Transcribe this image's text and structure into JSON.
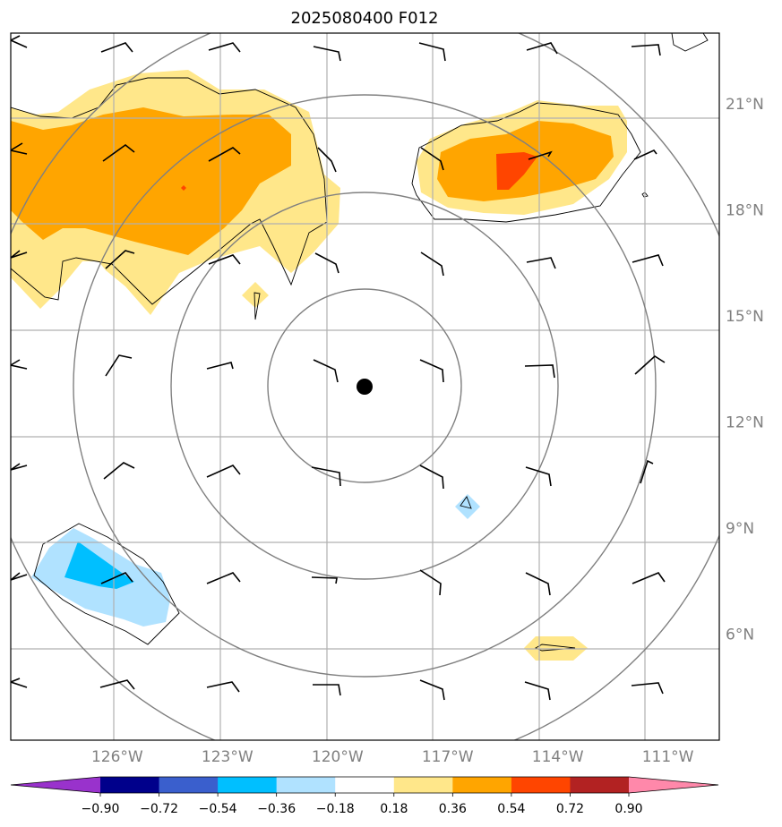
{
  "title": "2025080400 F012",
  "map": {
    "lon_range": [
      -128.9,
      -109.6
    ],
    "lat_range": [
      3.0,
      23.0
    ],
    "center": {
      "lon": "-118.9",
      "lat": "13.4"
    },
    "lon_labels": [
      "126°W",
      "123°W",
      "120°W",
      "117°W",
      "114°W",
      "111°W"
    ],
    "lon_values": [
      -126,
      -123,
      -120,
      -117,
      -114,
      -111
    ],
    "lat_labels": [
      "21°N",
      "18°N",
      "15°N",
      "12°N",
      "9°N",
      "6°N"
    ],
    "lat_values": [
      21,
      18,
      15,
      12,
      9,
      6
    ],
    "range_rings_deg": [
      2.7,
      5.4,
      8.1,
      10.8
    ]
  },
  "colorbar": {
    "tick_labels": [
      "−0.90",
      "−0.72",
      "−0.54",
      "−0.36",
      "−0.18",
      "0.18",
      "0.36",
      "0.54",
      "0.72",
      "0.90"
    ],
    "under_color": "#9932cc",
    "over_color": "#ff88aa",
    "colors": [
      "#9932cc",
      "#00008b",
      "#3a5fcd",
      "#00bfff",
      "#b0e2ff",
      "#ffffff",
      "#ffe78a",
      "#ffa500",
      "#ff4500",
      "#b22222",
      "#ff88aa"
    ]
  },
  "field_colors": {
    "neg_light": "#b0e2ff",
    "neg_mid": "#00bfff",
    "pos_light": "#ffe78a",
    "pos_mid": "#ffa500",
    "pos_high": "#ff4500"
  }
}
